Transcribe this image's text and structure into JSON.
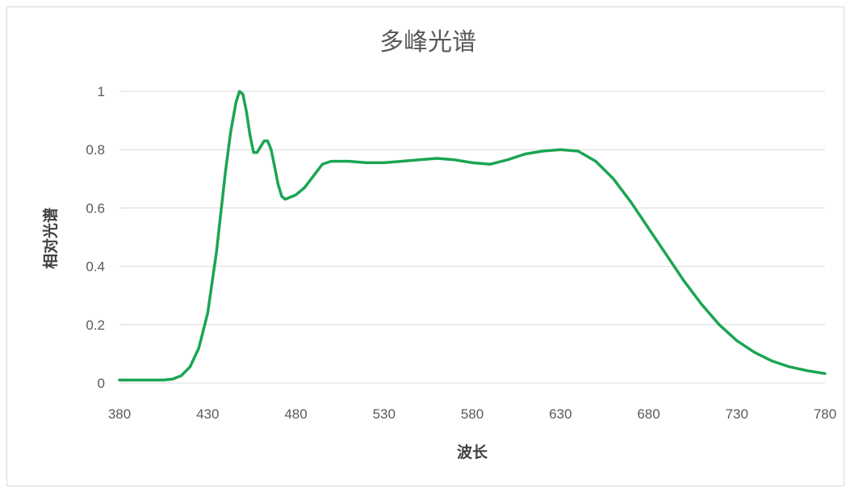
{
  "chart_data": {
    "type": "line",
    "title": "多峰光谱",
    "xlabel": "波长",
    "ylabel": "相对光谱",
    "xlim": [
      380,
      780
    ],
    "ylim": [
      0,
      1
    ],
    "x_ticks": [
      "380",
      "430",
      "480",
      "530",
      "580",
      "630",
      "680",
      "730",
      "780"
    ],
    "y_ticks": [
      "0",
      "0.2",
      "0.4",
      "0.6",
      "0.8",
      "1"
    ],
    "grid": "horizontal",
    "legend": "none",
    "line_color": "#1aa553",
    "series": [
      {
        "x": [
          380,
          395,
          405,
          410,
          415,
          420,
          425,
          430,
          435,
          440,
          443,
          446,
          448,
          450,
          452,
          454,
          456,
          458,
          460,
          462,
          464,
          466,
          468,
          470,
          472,
          474,
          476,
          480,
          485,
          490,
          495,
          500,
          510,
          520,
          530,
          540,
          550,
          560,
          570,
          580,
          590,
          600,
          610,
          620,
          630,
          640,
          650,
          660,
          670,
          680,
          690,
          700,
          710,
          720,
          730,
          740,
          750,
          760,
          770,
          780
        ],
        "y": [
          0.01,
          0.01,
          0.01,
          0.013,
          0.025,
          0.055,
          0.12,
          0.24,
          0.45,
          0.72,
          0.86,
          0.96,
          1.0,
          0.99,
          0.93,
          0.85,
          0.79,
          0.79,
          0.81,
          0.83,
          0.83,
          0.8,
          0.74,
          0.68,
          0.64,
          0.63,
          0.635,
          0.645,
          0.67,
          0.71,
          0.75,
          0.76,
          0.76,
          0.755,
          0.755,
          0.76,
          0.765,
          0.77,
          0.765,
          0.755,
          0.75,
          0.765,
          0.785,
          0.795,
          0.8,
          0.795,
          0.76,
          0.7,
          0.62,
          0.53,
          0.44,
          0.35,
          0.27,
          0.2,
          0.145,
          0.105,
          0.075,
          0.055,
          0.042,
          0.032
        ]
      }
    ]
  }
}
